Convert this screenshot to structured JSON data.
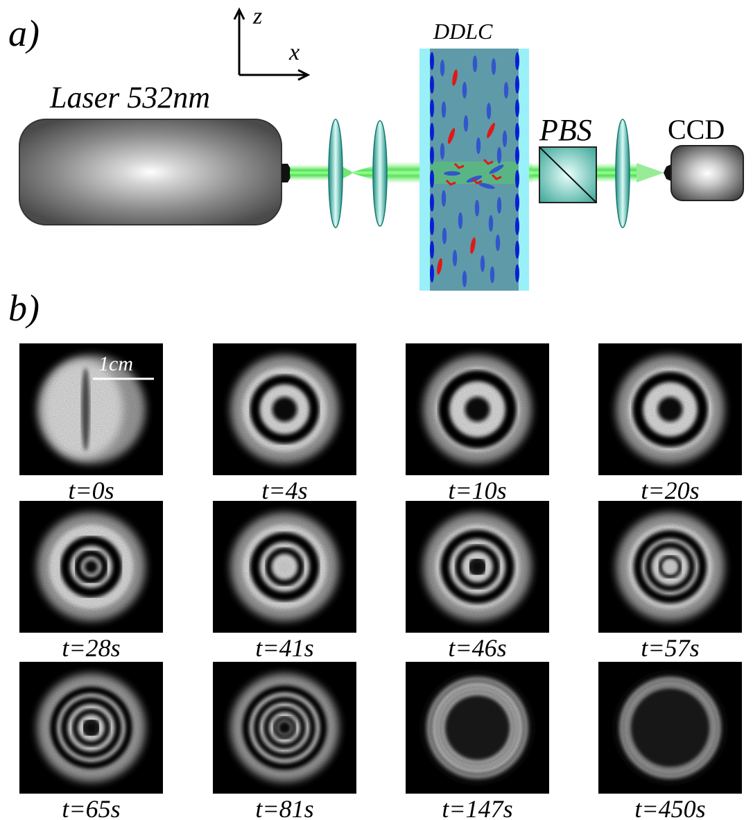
{
  "panel_a": {
    "label": "a)",
    "axis_z": "z",
    "axis_x": "x",
    "laser_label": "Laser 532nm",
    "ddlc_label": "DDLC",
    "pbs_label": "PBS",
    "ccd_label": "CCD"
  },
  "panel_b": {
    "label": "b)",
    "scale_bar_label": "1cm",
    "frames": [
      {
        "time": "t=0s"
      },
      {
        "time": "t=4s"
      },
      {
        "time": "t=10s"
      },
      {
        "time": "t=20s"
      },
      {
        "time": "t=28s"
      },
      {
        "time": "t=41s"
      },
      {
        "time": "t=46s"
      },
      {
        "time": "t=57s"
      },
      {
        "time": "t=65s"
      },
      {
        "time": "t=81s"
      },
      {
        "time": "t=147s"
      },
      {
        "time": "t=450s"
      }
    ]
  },
  "colors": {
    "beam": "#33dd33",
    "lens": "#2aa79a",
    "cell_outer": "#9af0f8",
    "cell_inner": "#5f9aa8",
    "molecule_blue": "#3355cc",
    "molecule_red": "#e01818",
    "wall": "#0a1fd0"
  }
}
